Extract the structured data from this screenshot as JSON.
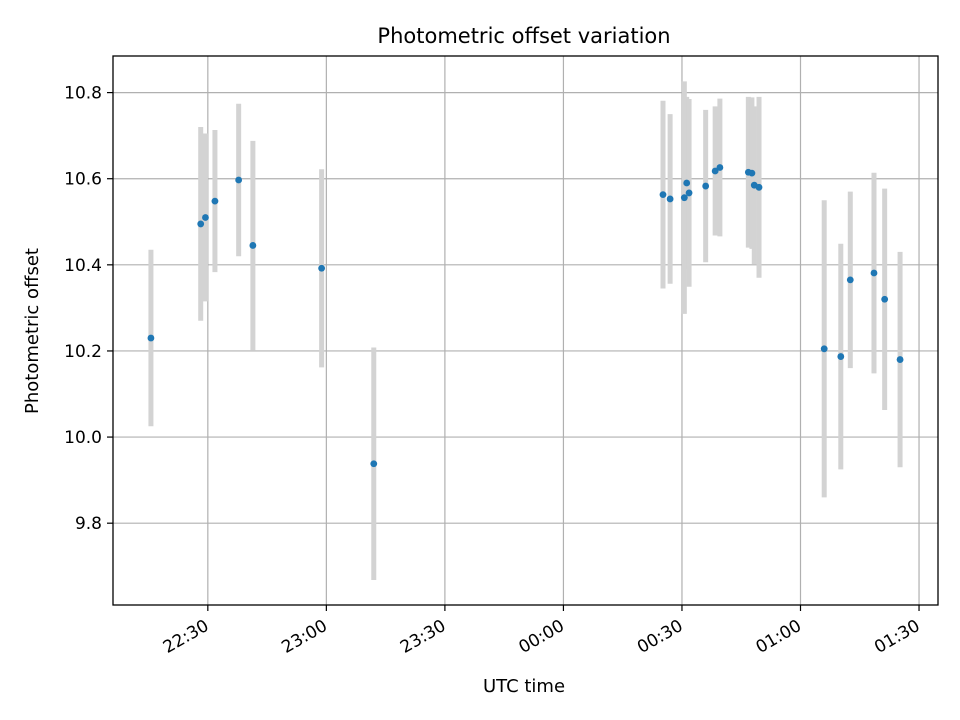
{
  "chart_data": {
    "type": "scatter",
    "title": "Photometric offset variation",
    "xlabel": "UTC time",
    "ylabel": "Photometric offset",
    "x_ticks": [
      "22:30",
      "23:00",
      "23:30",
      "00:00",
      "00:30",
      "01:00",
      "01:30"
    ],
    "x_tick_values": [
      22.5,
      23.0,
      23.5,
      24.0,
      24.5,
      25.0,
      25.5
    ],
    "y_ticks": [
      "9.8",
      "10.0",
      "10.2",
      "10.4",
      "10.6",
      "10.8"
    ],
    "y_tick_values": [
      9.8,
      10.0,
      10.2,
      10.4,
      10.6,
      10.8
    ],
    "xlim": [
      22.1,
      25.58
    ],
    "ylim": [
      9.61,
      10.885
    ],
    "grid": true,
    "colors": {
      "points": "#1f77b4",
      "errorbars": "#d3d3d3",
      "grid": "#b0b0b0"
    },
    "series": [
      {
        "points": [
          {
            "x": 22.26,
            "y": 10.23,
            "err": 0.205
          },
          {
            "x": 22.47,
            "y": 10.495,
            "err": 0.225
          },
          {
            "x": 22.49,
            "y": 10.51,
            "err": 0.195
          },
          {
            "x": 22.53,
            "y": 10.548,
            "err": 0.165
          },
          {
            "x": 22.63,
            "y": 10.597,
            "err": 0.177
          },
          {
            "x": 22.69,
            "y": 10.445,
            "err": 0.243
          },
          {
            "x": 22.98,
            "y": 10.392,
            "err": 0.23
          },
          {
            "x": 23.2,
            "y": 9.938,
            "err": 0.27
          },
          {
            "x": 24.42,
            "y": 10.563,
            "err": 0.218
          },
          {
            "x": 24.45,
            "y": 10.553,
            "err": 0.197
          },
          {
            "x": 24.51,
            "y": 10.556,
            "err": 0.27
          },
          {
            "x": 24.52,
            "y": 10.59,
            "err": 0.2
          },
          {
            "x": 24.53,
            "y": 10.567,
            "err": 0.218
          },
          {
            "x": 24.6,
            "y": 10.583,
            "err": 0.177
          },
          {
            "x": 24.64,
            "y": 10.618,
            "err": 0.15
          },
          {
            "x": 24.66,
            "y": 10.626,
            "err": 0.16
          },
          {
            "x": 24.78,
            "y": 10.615,
            "err": 0.175
          },
          {
            "x": 24.795,
            "y": 10.613,
            "err": 0.176
          },
          {
            "x": 24.805,
            "y": 10.585,
            "err": 0.183
          },
          {
            "x": 24.825,
            "y": 10.58,
            "err": 0.21
          },
          {
            "x": 25.1,
            "y": 10.205,
            "err": 0.345
          },
          {
            "x": 25.17,
            "y": 10.187,
            "err": 0.262
          },
          {
            "x": 25.21,
            "y": 10.365,
            "err": 0.205
          },
          {
            "x": 25.31,
            "y": 10.381,
            "err": 0.233
          },
          {
            "x": 25.355,
            "y": 10.32,
            "err": 0.257
          },
          {
            "x": 25.42,
            "y": 10.18,
            "err": 0.25
          }
        ]
      }
    ]
  }
}
